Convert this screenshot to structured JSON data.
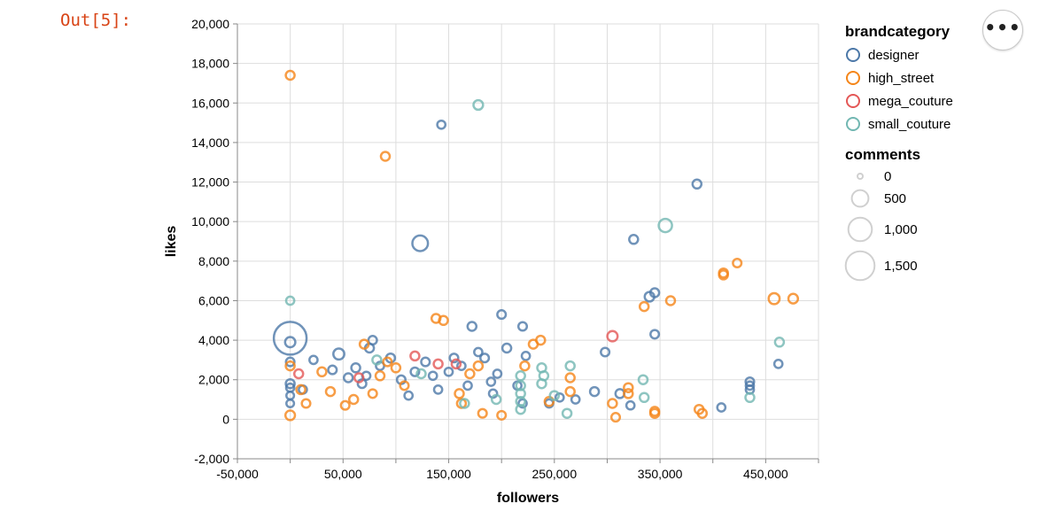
{
  "cell": {
    "prompt": "Out[5]:"
  },
  "menu": {
    "label": "•••"
  },
  "colors": {
    "designer": "#4c78a8",
    "high_street": "#f58518",
    "mega_couture": "#e45756",
    "small_couture": "#72b7b2",
    "grid": "#dddddd",
    "axis": "#888888"
  },
  "chart_data": {
    "type": "scatter",
    "xlabel": "followers",
    "ylabel": "likes",
    "xlim": [
      -50000,
      500000
    ],
    "ylim": [
      -2000,
      20000
    ],
    "x_ticks": [
      -50000,
      0,
      50000,
      100000,
      150000,
      200000,
      250000,
      300000,
      350000,
      400000,
      450000,
      500000
    ],
    "x_tick_labels": [
      "-50,000",
      "",
      "50,000",
      "",
      "150,000",
      "",
      "250,000",
      "",
      "350,000",
      "",
      "450,000",
      ""
    ],
    "y_ticks": [
      -2000,
      0,
      2000,
      4000,
      6000,
      8000,
      10000,
      12000,
      14000,
      16000,
      18000,
      20000
    ],
    "y_tick_labels": [
      "-2,000",
      "0",
      "2,000",
      "4,000",
      "6,000",
      "8,000",
      "10,000",
      "12,000",
      "14,000",
      "16,000",
      "18,000",
      "20,000"
    ],
    "grid": true,
    "legend_placement": "right",
    "color_legend": {
      "title": "brandcategory",
      "entries": [
        "designer",
        "high_street",
        "mega_couture",
        "small_couture"
      ]
    },
    "size_legend": {
      "title": "comments",
      "entries": [
        {
          "label": "0",
          "value": 0
        },
        {
          "label": "500",
          "value": 500
        },
        {
          "label": "1,000",
          "value": 1000
        },
        {
          "label": "1,500",
          "value": 1500
        }
      ]
    },
    "series": [
      {
        "name": "designer",
        "points": [
          [
            0,
            4100,
            1500
          ],
          [
            0,
            3900,
            100
          ],
          [
            0,
            2900,
            50
          ],
          [
            0,
            1800,
            60
          ],
          [
            0,
            1600,
            40
          ],
          [
            0,
            1200,
            30
          ],
          [
            0,
            800,
            30
          ],
          [
            12000,
            1500,
            40
          ],
          [
            22000,
            3000,
            40
          ],
          [
            40000,
            2500,
            50
          ],
          [
            46000,
            3300,
            120
          ],
          [
            55000,
            2100,
            60
          ],
          [
            62000,
            2600,
            60
          ],
          [
            68000,
            1800,
            50
          ],
          [
            72000,
            2200,
            40
          ],
          [
            75000,
            3600,
            60
          ],
          [
            78000,
            4000,
            50
          ],
          [
            85000,
            2700,
            40
          ],
          [
            95000,
            3100,
            60
          ],
          [
            105000,
            2000,
            50
          ],
          [
            112000,
            1200,
            40
          ],
          [
            118000,
            2400,
            50
          ],
          [
            123000,
            8900,
            300
          ],
          [
            128000,
            2900,
            50
          ],
          [
            135000,
            2200,
            40
          ],
          [
            140000,
            1500,
            40
          ],
          [
            143000,
            14900,
            40
          ],
          [
            150000,
            2400,
            40
          ],
          [
            155000,
            3100,
            50
          ],
          [
            162000,
            2700,
            40
          ],
          [
            168000,
            1700,
            40
          ],
          [
            172000,
            4700,
            60
          ],
          [
            178000,
            3400,
            40
          ],
          [
            184000,
            3100,
            50
          ],
          [
            190000,
            1900,
            40
          ],
          [
            192000,
            1300,
            40
          ],
          [
            196000,
            2300,
            40
          ],
          [
            200000,
            5300,
            50
          ],
          [
            205000,
            3600,
            60
          ],
          [
            215000,
            1700,
            40
          ],
          [
            220000,
            4700,
            50
          ],
          [
            223000,
            3200,
            40
          ],
          [
            220000,
            800,
            40
          ],
          [
            245000,
            800,
            40
          ],
          [
            255000,
            1100,
            40
          ],
          [
            270000,
            1000,
            40
          ],
          [
            288000,
            1400,
            60
          ],
          [
            298000,
            3400,
            50
          ],
          [
            312000,
            1300,
            60
          ],
          [
            322000,
            700,
            40
          ],
          [
            325000,
            9100,
            60
          ],
          [
            340000,
            6200,
            80
          ],
          [
            345000,
            6400,
            60
          ],
          [
            345000,
            4300,
            50
          ],
          [
            385000,
            11900,
            60
          ],
          [
            408000,
            600,
            40
          ],
          [
            435000,
            1900,
            50
          ],
          [
            435000,
            1700,
            40
          ],
          [
            435000,
            1500,
            40
          ],
          [
            462000,
            2800,
            40
          ]
        ]
      },
      {
        "name": "high_street",
        "points": [
          [
            0,
            17400,
            60
          ],
          [
            0,
            2700,
            60
          ],
          [
            0,
            200,
            80
          ],
          [
            10000,
            1500,
            60
          ],
          [
            15000,
            800,
            50
          ],
          [
            30000,
            2400,
            60
          ],
          [
            38000,
            1400,
            60
          ],
          [
            52000,
            700,
            50
          ],
          [
            60000,
            1000,
            60
          ],
          [
            70000,
            3800,
            60
          ],
          [
            78000,
            1300,
            50
          ],
          [
            85000,
            2200,
            60
          ],
          [
            90000,
            13300,
            60
          ],
          [
            92000,
            2900,
            50
          ],
          [
            100000,
            2600,
            60
          ],
          [
            108000,
            1700,
            50
          ],
          [
            138000,
            5100,
            60
          ],
          [
            145000,
            5000,
            60
          ],
          [
            160000,
            1300,
            60
          ],
          [
            162000,
            800,
            60
          ],
          [
            170000,
            2300,
            60
          ],
          [
            178000,
            2700,
            60
          ],
          [
            182000,
            300,
            50
          ],
          [
            200000,
            200,
            50
          ],
          [
            222000,
            2700,
            60
          ],
          [
            230000,
            3800,
            60
          ],
          [
            237000,
            4000,
            60
          ],
          [
            245000,
            900,
            60
          ],
          [
            265000,
            1400,
            60
          ],
          [
            265000,
            2100,
            60
          ],
          [
            305000,
            800,
            60
          ],
          [
            308000,
            100,
            50
          ],
          [
            320000,
            1600,
            60
          ],
          [
            320000,
            1300,
            60
          ],
          [
            335000,
            5700,
            60
          ],
          [
            345000,
            400,
            60
          ],
          [
            345000,
            300,
            60
          ],
          [
            360000,
            6000,
            60
          ],
          [
            387000,
            500,
            60
          ],
          [
            390000,
            300,
            60
          ],
          [
            410000,
            7400,
            60
          ],
          [
            410000,
            7300,
            60
          ],
          [
            423000,
            7900,
            50
          ],
          [
            458000,
            6100,
            120
          ],
          [
            476000,
            6100,
            80
          ]
        ]
      },
      {
        "name": "mega_couture",
        "points": [
          [
            8000,
            2300,
            60
          ],
          [
            65000,
            2100,
            60
          ],
          [
            118000,
            3200,
            60
          ],
          [
            140000,
            2800,
            60
          ],
          [
            157000,
            2800,
            60
          ],
          [
            305000,
            4200,
            100
          ]
        ]
      },
      {
        "name": "small_couture",
        "points": [
          [
            0,
            6000,
            40
          ],
          [
            82000,
            3000,
            60
          ],
          [
            124000,
            2300,
            60
          ],
          [
            165000,
            800,
            60
          ],
          [
            178000,
            15900,
            80
          ],
          [
            195000,
            1000,
            60
          ],
          [
            218000,
            2200,
            60
          ],
          [
            218000,
            1700,
            60
          ],
          [
            218000,
            1300,
            60
          ],
          [
            218000,
            900,
            60
          ],
          [
            218000,
            500,
            60
          ],
          [
            238000,
            2600,
            60
          ],
          [
            240000,
            2200,
            60
          ],
          [
            238000,
            1800,
            60
          ],
          [
            250000,
            1200,
            60
          ],
          [
            262000,
            300,
            60
          ],
          [
            265000,
            2700,
            60
          ],
          [
            334000,
            2000,
            60
          ],
          [
            335000,
            1100,
            60
          ],
          [
            355000,
            9800,
            200
          ],
          [
            435000,
            1100,
            60
          ],
          [
            463000,
            3900,
            60
          ]
        ]
      }
    ]
  }
}
